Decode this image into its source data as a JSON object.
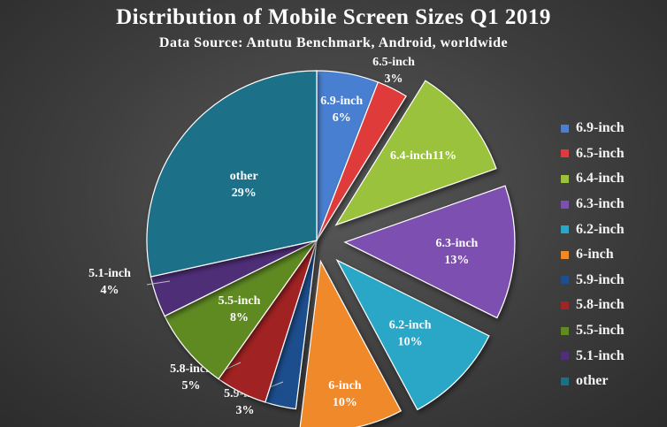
{
  "title": "Distribution of Mobile Screen Sizes Q1 2019",
  "subtitle": "Data Source: Antutu Benchmark, Android, worldwide",
  "chart_data": {
    "type": "pie",
    "slices": [
      {
        "name": "6.9-inch",
        "value": 6,
        "label_name": "6.9-inch",
        "label_value": "6%",
        "color": "#4a7fd1",
        "explode": false
      },
      {
        "name": "6.5-inch",
        "value": 3,
        "label_name": "6.5-inch",
        "label_value": "3%",
        "color": "#e03a3a",
        "explode": false
      },
      {
        "name": "6.4-inch",
        "value": 11,
        "label_name": "6.4-inch",
        "label_value": "11%",
        "color": "#9ac23c",
        "explode": true
      },
      {
        "name": "6.3-inch",
        "value": 13,
        "label_name": "6.3-inch",
        "label_value": "13%",
        "color": "#7d4fb0",
        "explode": true
      },
      {
        "name": "6.2-inch",
        "value": 10,
        "label_name": "6.2-inch",
        "label_value": "10%",
        "color": "#2aa7c6",
        "explode": true
      },
      {
        "name": "6-inch",
        "value": 10,
        "label_name": "6-inch",
        "label_value": "10%",
        "color": "#f0892a",
        "explode": true
      },
      {
        "name": "5.9-inch",
        "value": 3,
        "label_name": "5.9-inch",
        "label_value": "3%",
        "color": "#1f4e8c",
        "explode": false
      },
      {
        "name": "5.8-inch",
        "value": 5,
        "label_name": "5.8-inch",
        "label_value": "5%",
        "color": "#a12424",
        "explode": false
      },
      {
        "name": "5.5-inch",
        "value": 8,
        "label_name": "5.5-inch",
        "label_value": "8%",
        "color": "#5f8a22",
        "explode": false
      },
      {
        "name": "5.1-inch",
        "value": 4,
        "label_name": "5.1-inch",
        "label_value": "4%",
        "color": "#4f2f78",
        "explode": false
      },
      {
        "name": "other",
        "value": 29,
        "label_name": "other",
        "label_value": "29%",
        "color": "#1a7088",
        "explode": false
      }
    ],
    "legend_position": "right"
  }
}
